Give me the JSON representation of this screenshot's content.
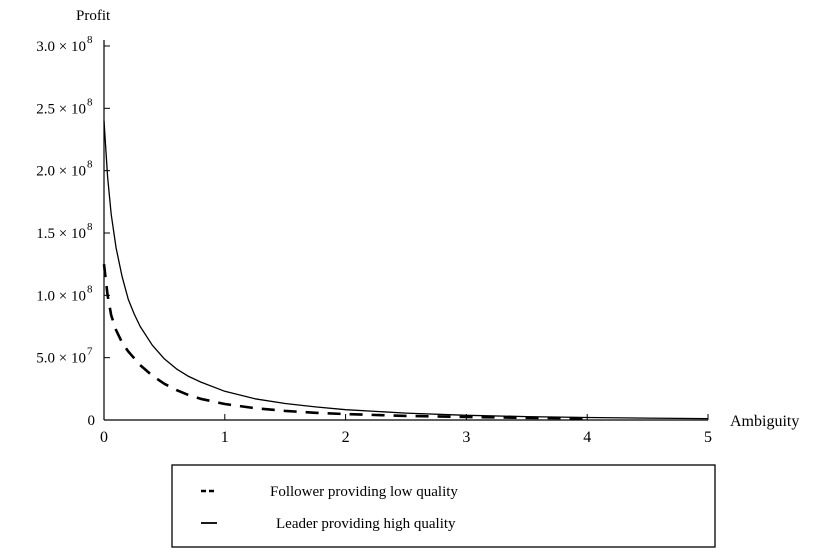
{
  "chart_data": {
    "type": "line",
    "title": "",
    "xlabel": "Ambiguity",
    "ylabel": "Profit",
    "xlim": [
      0,
      5
    ],
    "ylim": [
      0,
      300000000
    ],
    "grid": false,
    "legend_position": "bottom-center",
    "x_ticks": [
      {
        "value": 0,
        "label": "0"
      },
      {
        "value": 1,
        "label": "1"
      },
      {
        "value": 2,
        "label": "2"
      },
      {
        "value": 3,
        "label": "3"
      },
      {
        "value": 4,
        "label": "4"
      },
      {
        "value": 5,
        "label": "5"
      }
    ],
    "y_ticks": [
      {
        "value": 0,
        "label": "0",
        "mant": "",
        "exp": ""
      },
      {
        "value": 50000000,
        "label": "5.0 × 10^7",
        "mant": "5.0 × 10",
        "exp": "7"
      },
      {
        "value": 100000000,
        "label": "1.0 × 10^8",
        "mant": "1.0 × 10",
        "exp": "8"
      },
      {
        "value": 150000000,
        "label": "1.5 × 10^8",
        "mant": "1.5 × 10",
        "exp": "8"
      },
      {
        "value": 200000000,
        "label": "2.0 × 10^8",
        "mant": "2.0 × 10",
        "exp": "8"
      },
      {
        "value": 250000000,
        "label": "2.5 × 10^8",
        "mant": "2.5 × 10",
        "exp": "8"
      },
      {
        "value": 300000000,
        "label": "3.0 × 10^8",
        "mant": "3.0 × 10",
        "exp": "8"
      }
    ],
    "series": [
      {
        "name": "Leader providing high quality",
        "style": "solid",
        "color": "#000000",
        "x": [
          0.0,
          0.03,
          0.06,
          0.1,
          0.15,
          0.2,
          0.25,
          0.3,
          0.4,
          0.5,
          0.6,
          0.7,
          0.8,
          1.0,
          1.25,
          1.5,
          1.75,
          2.0,
          2.5,
          3.0,
          3.5,
          4.0,
          4.5,
          5.0
        ],
        "values": [
          240000000,
          195000000,
          165000000,
          138000000,
          115000000,
          97000000,
          85000000,
          75000000,
          60000000,
          49000000,
          41000000,
          35000000,
          30500000,
          23000000,
          17000000,
          13200000,
          10500000,
          8300000,
          5500000,
          3800000,
          2700000,
          2000000,
          1500000,
          1100000
        ]
      },
      {
        "name": "Follower providing low quality",
        "style": "dashed",
        "color": "#000000",
        "x": [
          0.0,
          0.03,
          0.06,
          0.1,
          0.15,
          0.2,
          0.3,
          0.4,
          0.5,
          0.6,
          0.7,
          0.8,
          1.0,
          1.25,
          1.5,
          1.75,
          2.0,
          2.5,
          3.0,
          3.5,
          4.0
        ],
        "values": [
          125000000,
          100000000,
          84000000,
          72000000,
          62000000,
          55000000,
          44000000,
          35500000,
          29000000,
          24000000,
          20000000,
          17000000,
          12800000,
          9500000,
          7300000,
          5800000,
          4700000,
          3300000,
          2400000,
          1800000,
          1300000
        ]
      }
    ],
    "legend": {
      "entries": [
        {
          "series_index": 1,
          "label": "Follower providing low quality",
          "marker": "dashed"
        },
        {
          "series_index": 0,
          "label": "Leader providing high quality",
          "marker": "solid"
        }
      ]
    }
  }
}
